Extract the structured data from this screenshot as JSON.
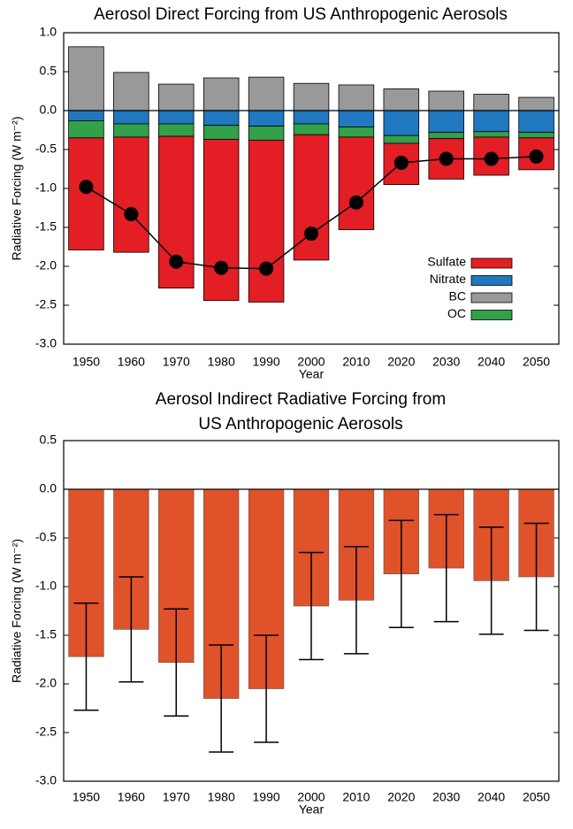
{
  "chart_data": [
    {
      "type": "stacked-bar",
      "title": "Aerosol Direct Forcing from US Anthropogenic Aerosols",
      "ylabel": "Radiative Forcing (W m⁻²)",
      "xlabel": "Year",
      "categories": [
        "1950",
        "1960",
        "1970",
        "1980",
        "1990",
        "2000",
        "2010",
        "2020",
        "2030",
        "2040",
        "2050"
      ],
      "series": [
        {
          "name": "Sulfate",
          "color": "#e31e24",
          "values": [
            -1.44,
            -1.48,
            -1.95,
            -2.07,
            -2.08,
            -1.61,
            -1.19,
            -0.53,
            -0.52,
            -0.49,
            -0.41
          ]
        },
        {
          "name": "Nitrate",
          "color": "#1f78c0",
          "values": [
            -0.13,
            -0.17,
            -0.17,
            -0.19,
            -0.2,
            -0.17,
            -0.21,
            -0.32,
            -0.28,
            -0.27,
            -0.28
          ]
        },
        {
          "name": "BC",
          "color": "#999999",
          "values": [
            0.82,
            0.49,
            0.34,
            0.42,
            0.43,
            0.35,
            0.33,
            0.28,
            0.25,
            0.21,
            0.17
          ]
        },
        {
          "name": "OC",
          "color": "#33a04a",
          "values": [
            -0.22,
            -0.17,
            -0.16,
            -0.18,
            -0.18,
            -0.14,
            -0.13,
            -0.1,
            -0.08,
            -0.07,
            -0.07
          ]
        }
      ],
      "net": {
        "color": "#000000",
        "values": [
          -0.98,
          -1.33,
          -1.94,
          -2.02,
          -2.03,
          -1.58,
          -1.18,
          -0.67,
          -0.62,
          -0.62,
          -0.59
        ]
      },
      "ylim": [
        -3,
        1
      ],
      "yticks": [
        {
          "value": -3,
          "label": "-3.0"
        },
        -2.5,
        {
          "value": -2,
          "label": "-2.0"
        },
        -1.5,
        {
          "value": -1,
          "label": "-1.0"
        },
        -0.5,
        {
          "value": 0,
          "label": "0.0"
        },
        0.5,
        {
          "value": 1,
          "label": "1.0"
        }
      ],
      "legend": "lower right"
    },
    {
      "type": "bar-error",
      "title": [
        "Aerosol Indirect Radiative Forcing from",
        "US Anthropogenic Aerosols"
      ],
      "ylabel": "Radiative Forcing (W m⁻²)",
      "xlabel": "Year",
      "categories": [
        "1950",
        "1960",
        "1970",
        "1980",
        "1990",
        "2000",
        "2010",
        "2020",
        "2030",
        "2040",
        "2050"
      ],
      "color": "#e0522a",
      "values": [
        -1.72,
        -1.44,
        -1.78,
        -2.15,
        -2.05,
        -1.2,
        -1.14,
        -0.87,
        -0.81,
        -0.94,
        -0.9
      ],
      "errors": [
        0.55,
        0.54,
        0.55,
        0.55,
        0.55,
        0.55,
        0.55,
        0.55,
        0.55,
        0.55,
        0.55
      ],
      "ylim": [
        -3,
        0.5
      ],
      "yticks": [
        {
          "value": -3,
          "label": "-3.0"
        },
        -2.5,
        {
          "value": -2,
          "label": "-2.0"
        },
        -1.5,
        {
          "value": -1,
          "label": "-1.0"
        },
        -0.5,
        {
          "value": 0,
          "label": "0.0"
        },
        0.5
      ]
    }
  ]
}
